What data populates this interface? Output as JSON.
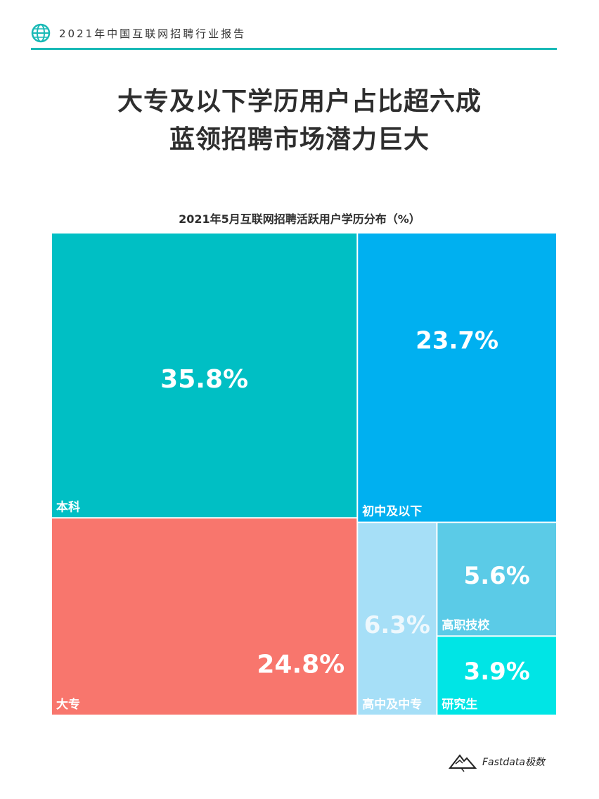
{
  "header": {
    "text": "2021年中国互联网招聘行业报告",
    "icon": "globe-icon"
  },
  "title": {
    "line1": "大专及以下学历用户占比超六成",
    "line2": "蓝领招聘市场潜力巨大"
  },
  "chart_data": {
    "type": "treemap",
    "title": "2021年5月互联网招聘活跃用户学历分布（%）",
    "unit": "%",
    "items": [
      {
        "category": "本科",
        "value": 35.8,
        "label": "35.8%",
        "color": "#00bfc4"
      },
      {
        "category": "初中及以下",
        "value": 23.7,
        "label": "23.7%",
        "color": "#00b0f0"
      },
      {
        "category": "大专",
        "value": 24.8,
        "label": "24.8%",
        "color": "#f8766d"
      },
      {
        "category": "高中及中专",
        "value": 6.3,
        "label": "6.3%",
        "color": "#a6dff7"
      },
      {
        "category": "高职技校",
        "value": 5.6,
        "label": "5.6%",
        "color": "#5bcbe7"
      },
      {
        "category": "研究生",
        "value": 3.9,
        "label": "3.9%",
        "color": "#00e5e5"
      }
    ]
  },
  "footer": {
    "brand": "Fastdata极数",
    "icon": "mountain-logo-icon"
  }
}
